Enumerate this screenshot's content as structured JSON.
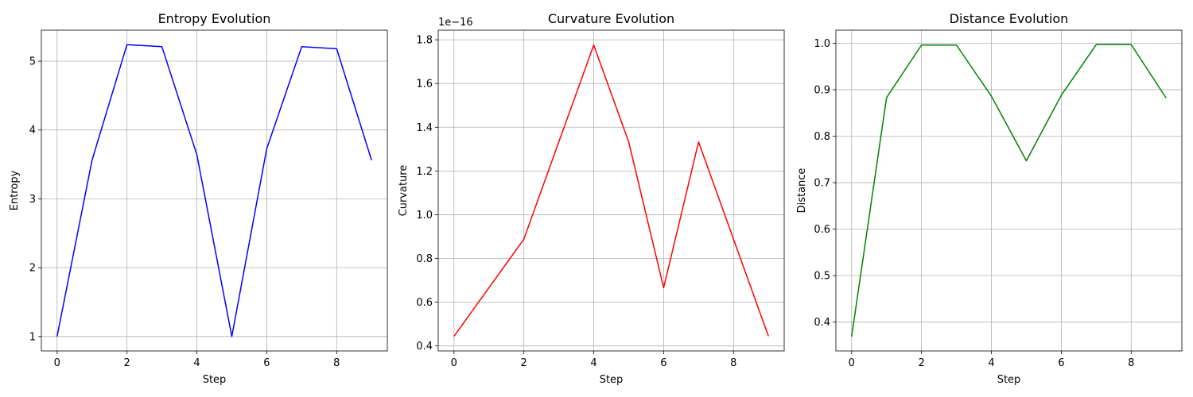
{
  "chart_data": [
    {
      "type": "line",
      "title": "Entropy Evolution",
      "xlabel": "Step",
      "ylabel": "Entropy",
      "color": "#0000ff",
      "grid": true,
      "xlim": [
        -0.45,
        9.45
      ],
      "ylim": [
        0.79,
        5.45
      ],
      "xticks": [
        0,
        2,
        4,
        6,
        8
      ],
      "xtick_labels": [
        "0",
        "2",
        "4",
        "6",
        "8"
      ],
      "yticks": [
        1,
        2,
        3,
        4,
        5
      ],
      "ytick_labels": [
        "1",
        "2",
        "3",
        "4",
        "5"
      ],
      "offset_text": "",
      "series": [
        {
          "x": [
            0,
            1,
            2,
            3,
            4,
            5,
            6,
            7,
            8,
            9
          ],
          "values": [
            1.0,
            3.56,
            5.24,
            5.21,
            3.64,
            1.0,
            3.73,
            5.21,
            5.18,
            3.56
          ]
        }
      ]
    },
    {
      "type": "line",
      "title": "Curvature Evolution",
      "xlabel": "Step",
      "ylabel": "Curvature",
      "color": "#ff0000",
      "grid": true,
      "xlim": [
        -0.45,
        9.45
      ],
      "ylim": [
        0.377,
        1.844
      ],
      "xticks": [
        0,
        2,
        4,
        6,
        8
      ],
      "xtick_labels": [
        "0",
        "2",
        "4",
        "6",
        "8"
      ],
      "yticks": [
        0.4,
        0.6,
        0.8,
        1.0,
        1.2,
        1.4,
        1.6,
        1.8
      ],
      "ytick_labels": [
        "0.4",
        "0.6",
        "0.8",
        "1.0",
        "1.2",
        "1.4",
        "1.6",
        "1.8"
      ],
      "offset_text": "1e−16",
      "series": [
        {
          "x": [
            0,
            1,
            2,
            3,
            4,
            5,
            6,
            7,
            8,
            9
          ],
          "values": [
            0.444,
            0.666,
            0.888,
            1.333,
            1.776,
            1.333,
            0.666,
            1.333,
            0.888,
            0.444
          ]
        }
      ]
    },
    {
      "type": "line",
      "title": "Distance Evolution",
      "xlabel": "Step",
      "ylabel": "Distance",
      "color": "#008000",
      "grid": true,
      "xlim": [
        -0.45,
        9.45
      ],
      "ylim": [
        0.338,
        1.028
      ],
      "xticks": [
        0,
        2,
        4,
        6,
        8
      ],
      "xtick_labels": [
        "0",
        "2",
        "4",
        "6",
        "8"
      ],
      "yticks": [
        0.4,
        0.5,
        0.6,
        0.7,
        0.8,
        0.9,
        1.0
      ],
      "ytick_labels": [
        "0.4",
        "0.5",
        "0.6",
        "0.7",
        "0.8",
        "0.9",
        "1.0"
      ],
      "offset_text": "",
      "series": [
        {
          "x": [
            0,
            1,
            2,
            3,
            4,
            5,
            6,
            7,
            8,
            9
          ],
          "values": [
            0.369,
            0.883,
            0.996,
            0.996,
            0.886,
            0.747,
            0.888,
            0.997,
            0.997,
            0.882
          ]
        }
      ]
    }
  ]
}
